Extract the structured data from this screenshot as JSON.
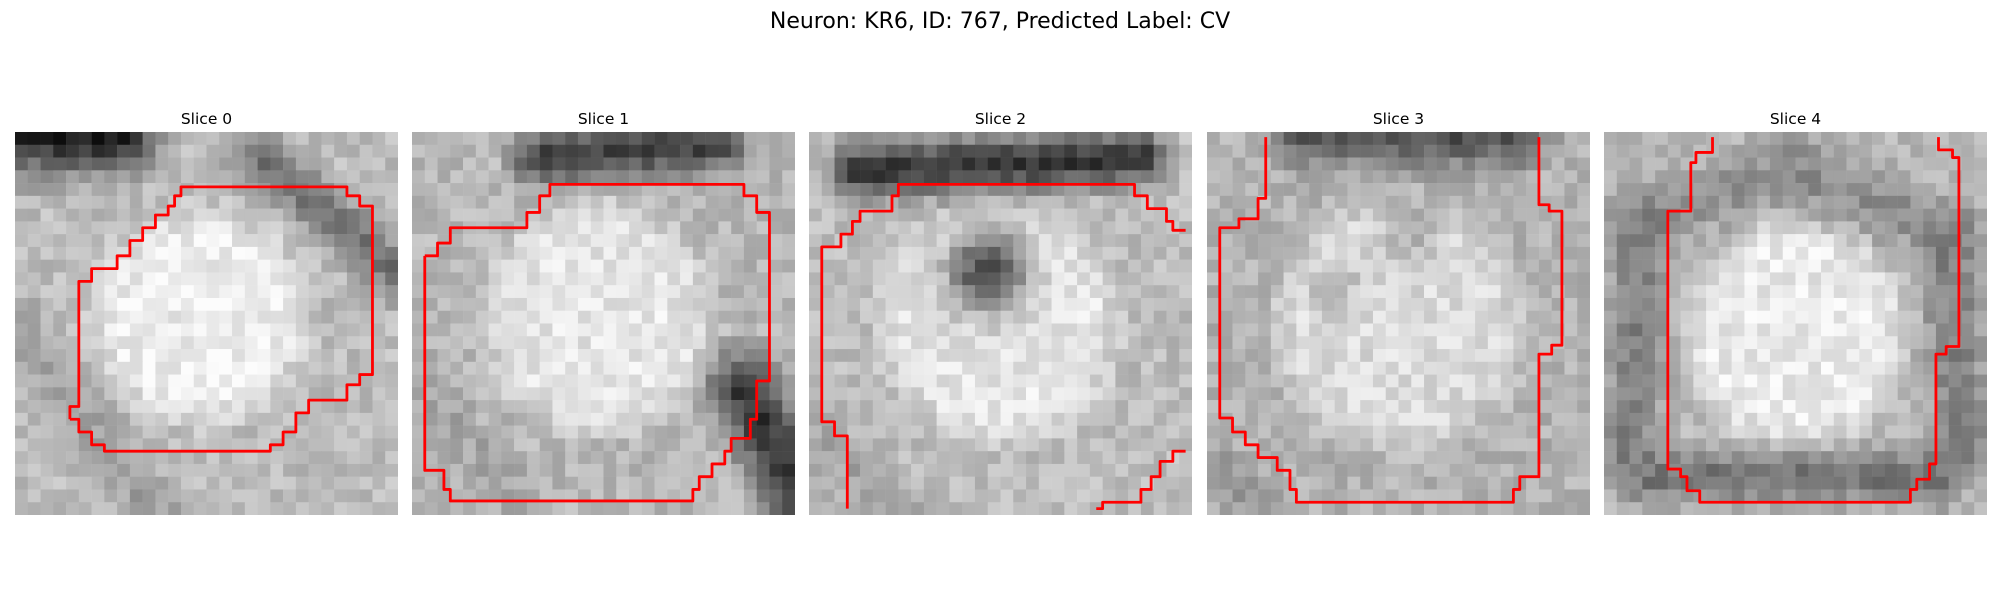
{
  "figure": {
    "title": "Neuron: KR6, ID: 767, Predicted Label: CV"
  },
  "slices": [
    {
      "title": "Slice 0"
    },
    {
      "title": "Slice 1"
    },
    {
      "title": "Slice 2"
    },
    {
      "title": "Slice 3"
    },
    {
      "title": "Slice 4"
    }
  ],
  "colors": {
    "contour": "#ff0000",
    "colormap": "grayscale"
  }
}
